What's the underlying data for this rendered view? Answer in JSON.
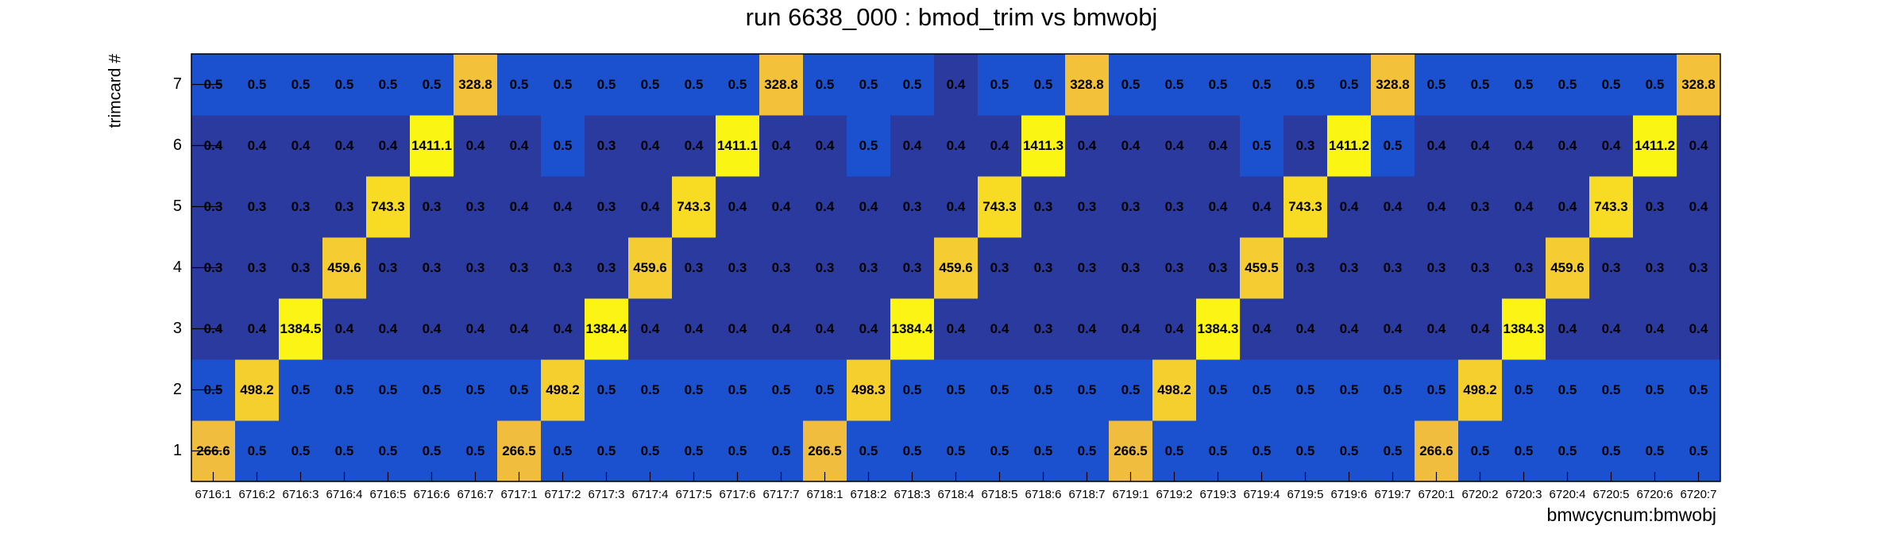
{
  "chart_data": {
    "type": "heatmap",
    "title": "run 6638_000 : bmod_trim vs bmwobj",
    "x_label": "bmwcycnum:bmwobj",
    "y_label": "trimcard #",
    "x_categories": [
      "6716:1",
      "6716:2",
      "6716:3",
      "6716:4",
      "6716:5",
      "6716:6",
      "6716:7",
      "6717:1",
      "6717:2",
      "6717:3",
      "6717:4",
      "6717:5",
      "6717:6",
      "6717:7",
      "6718:1",
      "6718:2",
      "6718:3",
      "6718:4",
      "6718:5",
      "6718:6",
      "6718:7",
      "6719:1",
      "6719:2",
      "6719:3",
      "6719:4",
      "6719:5",
      "6719:6",
      "6719:7",
      "6720:1",
      "6720:2",
      "6720:3",
      "6720:4",
      "6720:5",
      "6720:6",
      "6720:7"
    ],
    "y_categories": [
      1,
      2,
      3,
      4,
      5,
      6,
      7
    ],
    "log_z": true,
    "palette": [
      "#2b3a9e",
      "#2b3a9e",
      "#1b50cf",
      "#f2be3e",
      "#f5cd30",
      "#f8de22",
      "#fbf514"
    ],
    "values": [
      [
        266.6,
        0.5,
        0.5,
        0.5,
        0.5,
        0.5,
        0.5,
        266.5,
        0.5,
        0.5,
        0.5,
        0.5,
        0.5,
        0.5,
        266.5,
        0.5,
        0.5,
        0.5,
        0.5,
        0.5,
        0.5,
        266.5,
        0.5,
        0.5,
        0.5,
        0.5,
        0.5,
        0.5,
        266.6,
        0.5,
        0.5,
        0.5,
        0.5,
        0.5,
        0.5
      ],
      [
        0.5,
        498.2,
        0.5,
        0.5,
        0.5,
        0.5,
        0.5,
        0.5,
        498.2,
        0.5,
        0.5,
        0.5,
        0.5,
        0.5,
        0.5,
        498.3,
        0.5,
        0.5,
        0.5,
        0.5,
        0.5,
        0.5,
        498.2,
        0.5,
        0.5,
        0.5,
        0.5,
        0.5,
        0.5,
        498.2,
        0.5,
        0.5,
        0.5,
        0.5,
        0.5
      ],
      [
        0.4,
        0.4,
        1384.5,
        0.4,
        0.4,
        0.4,
        0.4,
        0.4,
        0.4,
        1384.4,
        0.4,
        0.4,
        0.4,
        0.4,
        0.4,
        0.4,
        1384.4,
        0.4,
        0.4,
        0.3,
        0.4,
        0.4,
        0.4,
        1384.3,
        0.4,
        0.4,
        0.4,
        0.4,
        0.4,
        0.4,
        1384.3,
        0.4,
        0.4,
        0.4,
        0.4
      ],
      [
        0.3,
        0.3,
        0.3,
        459.6,
        0.3,
        0.3,
        0.3,
        0.3,
        0.3,
        0.3,
        459.6,
        0.3,
        0.3,
        0.3,
        0.3,
        0.3,
        0.3,
        459.6,
        0.3,
        0.3,
        0.3,
        0.3,
        0.3,
        0.3,
        459.5,
        0.3,
        0.3,
        0.3,
        0.3,
        0.3,
        0.3,
        459.6,
        0.3,
        0.3,
        0.3
      ],
      [
        0.3,
        0.3,
        0.3,
        0.3,
        743.3,
        0.3,
        0.3,
        0.4,
        0.4,
        0.3,
        0.4,
        743.3,
        0.4,
        0.4,
        0.4,
        0.4,
        0.3,
        0.4,
        743.3,
        0.3,
        0.3,
        0.3,
        0.3,
        0.4,
        0.4,
        743.3,
        0.4,
        0.4,
        0.4,
        0.3,
        0.4,
        0.4,
        743.3,
        0.3,
        0.4
      ],
      [
        0.4,
        0.4,
        0.4,
        0.4,
        0.4,
        1411.1,
        0.4,
        0.4,
        0.5,
        0.3,
        0.4,
        0.4,
        1411.1,
        0.4,
        0.4,
        0.5,
        0.4,
        0.4,
        0.4,
        1411.3,
        0.4,
        0.4,
        0.4,
        0.4,
        0.5,
        0.3,
        1411.2,
        0.5,
        0.4,
        0.4,
        0.4,
        0.4,
        0.4,
        1411.2,
        0.4
      ],
      [
        0.5,
        0.5,
        0.5,
        0.5,
        0.5,
        0.5,
        328.8,
        0.5,
        0.5,
        0.5,
        0.5,
        0.5,
        0.5,
        328.8,
        0.5,
        0.5,
        0.5,
        0.4,
        0.5,
        0.5,
        328.8,
        0.5,
        0.5,
        0.5,
        0.5,
        0.5,
        0.5,
        328.8,
        0.5,
        0.5,
        0.5,
        0.5,
        0.5,
        0.5,
        328.8
      ]
    ]
  }
}
